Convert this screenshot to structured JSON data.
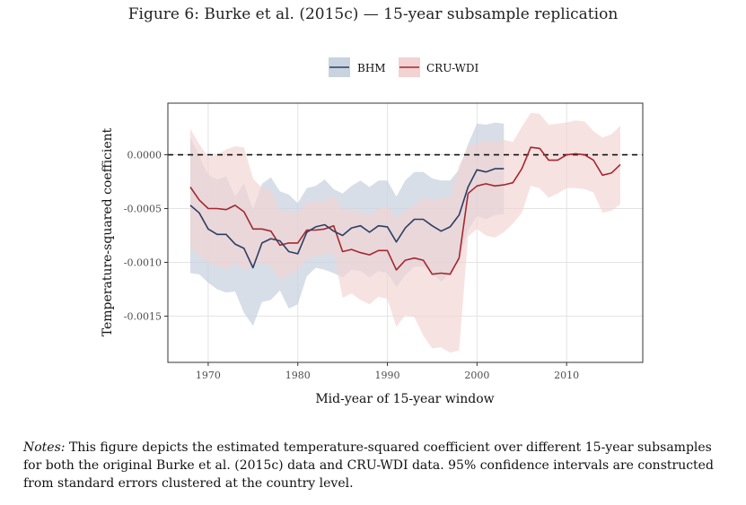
{
  "figure_title": "Figure 6: Burke et al. (2015c) — 15-year subsample replication",
  "notes": {
    "label": "Notes:",
    "text": "This figure depicts the estimated temperature-squared coefficient over different 15-year subsamples for both the original Burke et al. (2015c) data and CRU-WDI data. 95% confidence intervals are constructed from standard errors clustered at the country level."
  },
  "chart_data": {
    "type": "line",
    "xlabel": "Mid-year of 15-year window",
    "ylabel": "Temperature-squared coefficient",
    "xlim": [
      1965.5,
      2018.5
    ],
    "ylim": [
      -0.00193,
      0.00048
    ],
    "xticks": [
      1970,
      1980,
      1990,
      2000,
      2010
    ],
    "yticks": [
      0.0,
      -0.0005,
      -0.001,
      -0.0015
    ],
    "ytick_labels": [
      "0.0000",
      "-0.0005",
      "-0.0010",
      "-0.0015"
    ],
    "reference_line": 0.0,
    "grid": true,
    "legend_position": "top",
    "series": [
      {
        "name": "BHM",
        "color": "#2c3e63",
        "band_color": "#c9d3e0",
        "x": [
          1968,
          1969,
          1970,
          1971,
          1972,
          1973,
          1974,
          1975,
          1976,
          1977,
          1978,
          1979,
          1980,
          1981,
          1982,
          1983,
          1984,
          1985,
          1986,
          1987,
          1988,
          1989,
          1990,
          1991,
          1992,
          1993,
          1994,
          1995,
          1996,
          1997,
          1998,
          1999,
          2000,
          2001,
          2002,
          2003
        ],
        "y": [
          -0.00047,
          -0.00054,
          -0.00069,
          -0.00074,
          -0.00074,
          -0.00083,
          -0.00087,
          -0.00105,
          -0.00082,
          -0.00078,
          -0.0008,
          -0.0009,
          -0.00092,
          -0.00072,
          -0.00067,
          -0.00065,
          -0.00071,
          -0.00075,
          -0.00068,
          -0.00066,
          -0.00072,
          -0.00066,
          -0.00067,
          -0.00081,
          -0.00068,
          -0.0006,
          -0.0006,
          -0.00066,
          -0.00071,
          -0.00067,
          -0.00056,
          -0.0003,
          -0.00014,
          -0.00016,
          -0.00013,
          -0.00013
        ],
        "lower": [
          -0.0011,
          -0.00111,
          -0.00119,
          -0.00125,
          -0.00128,
          -0.00127,
          -0.00147,
          -0.00159,
          -0.00137,
          -0.00135,
          -0.00126,
          -0.00143,
          -0.00139,
          -0.00113,
          -0.00105,
          -0.00107,
          -0.0011,
          -0.00114,
          -0.00107,
          -0.00108,
          -0.00114,
          -0.00108,
          -0.0011,
          -0.00123,
          -0.00112,
          -0.00104,
          -0.00104,
          -0.0011,
          -0.00118,
          -0.0011,
          -0.00098,
          -0.0007,
          -0.00057,
          -0.0006,
          -0.00056,
          -0.00055
        ],
        "upper": [
          0.00016,
          -1e-05,
          -0.00019,
          -0.00023,
          -0.0002,
          -0.00039,
          -0.00027,
          -0.00051,
          -0.00027,
          -0.00021,
          -0.00034,
          -0.00037,
          -0.00045,
          -0.00031,
          -0.00029,
          -0.00023,
          -0.00032,
          -0.00036,
          -0.00029,
          -0.00024,
          -0.0003,
          -0.00024,
          -0.00024,
          -0.00039,
          -0.00024,
          -0.00016,
          -0.00016,
          -0.00022,
          -0.00024,
          -0.00024,
          -0.00014,
          0.0001,
          0.00029,
          0.00028,
          0.0003,
          0.00029
        ]
      },
      {
        "name": "CRU-WDI",
        "color": "#a3282f",
        "band_color": "#f3d2d2",
        "x": [
          1968,
          1969,
          1970,
          1971,
          1972,
          1973,
          1974,
          1975,
          1976,
          1977,
          1978,
          1979,
          1980,
          1981,
          1982,
          1983,
          1984,
          1985,
          1986,
          1987,
          1988,
          1989,
          1990,
          1991,
          1992,
          1993,
          1994,
          1995,
          1996,
          1997,
          1998,
          1999,
          2000,
          2001,
          2002,
          2003,
          2004,
          2005,
          2006,
          2007,
          2008,
          2009,
          2010,
          2011,
          2012,
          2013,
          2014,
          2015,
          2016
        ],
        "y": [
          -0.0003,
          -0.00042,
          -0.0005,
          -0.0005,
          -0.00051,
          -0.00047,
          -0.00053,
          -0.00069,
          -0.00069,
          -0.00071,
          -0.00084,
          -0.00082,
          -0.00082,
          -0.0007,
          -0.0007,
          -0.00069,
          -0.00066,
          -0.0009,
          -0.00088,
          -0.00091,
          -0.00093,
          -0.00089,
          -0.00089,
          -0.00107,
          -0.00098,
          -0.00096,
          -0.00098,
          -0.00111,
          -0.0011,
          -0.00111,
          -0.00096,
          -0.00036,
          -0.00029,
          -0.00027,
          -0.00029,
          -0.00028,
          -0.00026,
          -0.00013,
          7e-05,
          6e-05,
          -5e-05,
          -5e-05,
          0.0,
          1e-05,
          0.0,
          -5e-05,
          -0.00019,
          -0.00017,
          -9e-05
        ],
        "lower": [
          -0.00087,
          -0.00094,
          -0.001,
          -0.00103,
          -0.00107,
          -0.001,
          -0.00107,
          -0.00104,
          -0.001,
          -0.00104,
          -0.00116,
          -0.00112,
          -0.00107,
          -0.00097,
          -0.00094,
          -0.00093,
          -0.00091,
          -0.00133,
          -0.00129,
          -0.00135,
          -0.00139,
          -0.00132,
          -0.00134,
          -0.0016,
          -0.00149,
          -0.00151,
          -0.00168,
          -0.0018,
          -0.00179,
          -0.00184,
          -0.00182,
          -0.00076,
          -0.00069,
          -0.00075,
          -0.00077,
          -0.00072,
          -0.00064,
          -0.00054,
          -0.00029,
          -0.00031,
          -0.0004,
          -0.00036,
          -0.00031,
          -0.00031,
          -0.00032,
          -0.00035,
          -0.00054,
          -0.00052,
          -0.00046
        ],
        "upper": [
          0.00024,
          0.0001,
          -2e-05,
          0.0,
          5e-05,
          8e-05,
          7e-05,
          -0.00022,
          -0.00031,
          -0.00033,
          -0.00052,
          -0.00052,
          -0.00054,
          -0.00044,
          -0.00044,
          -0.00043,
          -0.00038,
          -0.00052,
          -0.0005,
          -0.00054,
          -0.00056,
          -0.0005,
          -0.00048,
          -0.00058,
          -0.00052,
          -0.00047,
          -0.0004,
          -0.00042,
          -0.0004,
          -0.0004,
          -0.0001,
          7e-05,
          0.00011,
          0.00014,
          0.00012,
          0.00014,
          0.00012,
          0.00026,
          0.00039,
          0.00038,
          0.00028,
          0.00029,
          0.0003,
          0.00032,
          0.00031,
          0.00022,
          0.00016,
          0.00019,
          0.00027
        ]
      }
    ]
  }
}
